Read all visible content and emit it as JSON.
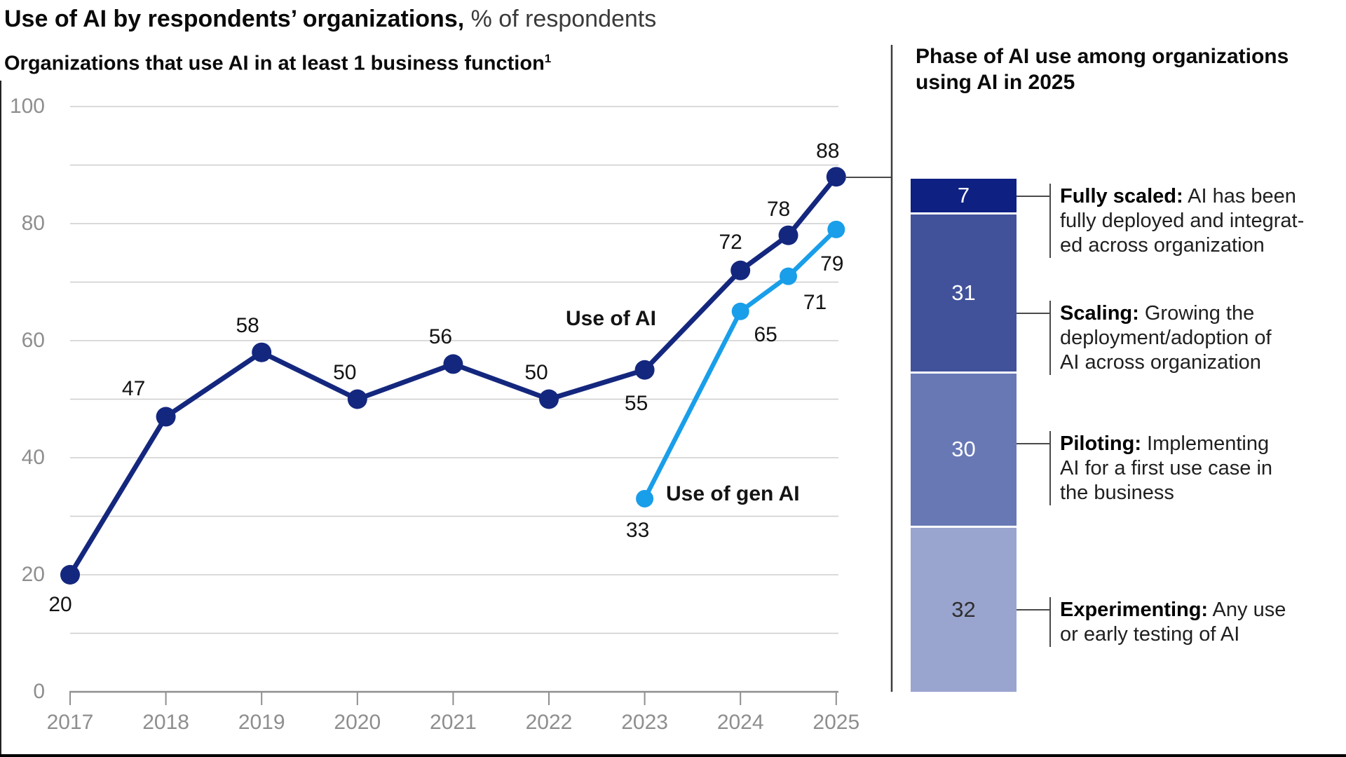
{
  "header": {
    "title_bold": "Use of AI by respondents’ organizations,",
    "title_regular": " % of respondents",
    "subtitle": "Organizations that use AI in at least 1 business function",
    "subtitle_superscript": "1"
  },
  "right_panel": {
    "title_lines": [
      "Phase of AI use among organizations",
      "using AI in 2025"
    ]
  },
  "colors": {
    "use_of_ai_line": "#14277e",
    "use_of_gen_ai_line": "#199ee9",
    "gridline": "#cdcdcd",
    "axis": "#8f8f8f",
    "axis_label": "#8e8e8e",
    "divider": "#3c3c3c",
    "callout": "#4a4a4a"
  },
  "chart_data": [
    {
      "type": "line",
      "title": "Use of AI by respondents’ organizations, % of respondents",
      "subtitle": "Organizations that use AI in at least 1 business function",
      "x_ticks": [
        2017,
        2018,
        2019,
        2020,
        2021,
        2022,
        2023,
        2024,
        2025
      ],
      "ylim": [
        0,
        100
      ],
      "y_tick_labels": [
        0,
        20,
        40,
        60,
        80,
        100
      ],
      "grid_interval": 10,
      "legend_position": "inline-labels",
      "series": [
        {
          "name": "Use of AI",
          "color": "#14277e",
          "points": [
            [
              2017,
              20
            ],
            [
              2018,
              47
            ],
            [
              2019,
              58
            ],
            [
              2020,
              50
            ],
            [
              2021,
              56
            ],
            [
              2022,
              50
            ],
            [
              2023,
              55
            ],
            [
              2024,
              72
            ],
            [
              2024.5,
              78
            ],
            [
              2025,
              88
            ]
          ]
        },
        {
          "name": "Use of gen AI",
          "color": "#199ee9",
          "points": [
            [
              2023,
              33
            ],
            [
              2024,
              65
            ],
            [
              2024.5,
              71
            ],
            [
              2025,
              79
            ]
          ]
        }
      ]
    },
    {
      "type": "bar",
      "subtype": "stacked-single-column",
      "title": "Phase of AI use among organizations using AI in 2025",
      "total": 100,
      "segments": [
        {
          "label": "Fully scaled",
          "value": 7,
          "color": "#0e2082",
          "value_label_color": "#ffffff",
          "term": "Fully scaled:",
          "desc_lines": [
            "AI has been",
            "fully deployed and integrat-",
            "ed across organization"
          ]
        },
        {
          "label": "Scaling",
          "value": 31,
          "color": "#41529b",
          "value_label_color": "#ffffff",
          "term": "Scaling:",
          "desc_lines": [
            "Growing the",
            "deployment/adoption of",
            "AI across organization"
          ]
        },
        {
          "label": "Piloting",
          "value": 30,
          "color": "#6878b5",
          "value_label_color": "#ffffff",
          "term": "Piloting:",
          "desc_lines": [
            "Implementing",
            "AI for a first use case in",
            "the business"
          ]
        },
        {
          "label": "Experimenting",
          "value": 32,
          "color": "#9aa5cf",
          "value_label_color": "#2e2e2e",
          "term": "Experimenting:",
          "desc_lines": [
            "Any use",
            "or early testing of AI"
          ]
        }
      ]
    }
  ]
}
